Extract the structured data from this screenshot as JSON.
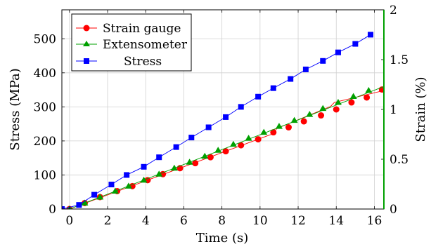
{
  "chart_data": {
    "type": "line",
    "title": "",
    "xlabel": "Time (s)",
    "ylabel_left": "Stress (MPa)",
    "ylabel_right": "Strain (%)",
    "xlim": [
      -0.4,
      16.5
    ],
    "ylim_left": [
      0,
      585
    ],
    "ylim_right": [
      0,
      2
    ],
    "xticks": [
      0,
      2,
      4,
      6,
      8,
      10,
      12,
      14,
      16
    ],
    "yticks_left": [
      0,
      100,
      200,
      300,
      400,
      500
    ],
    "yticks_right": [
      0,
      0.5,
      1,
      1.5,
      2
    ],
    "xtick_labels": [
      "0",
      "2",
      "4",
      "6",
      "8",
      "10",
      "12",
      "14",
      "16"
    ],
    "ytick_labels_left": [
      "0",
      "100",
      "200",
      "300",
      "400",
      "500"
    ],
    "ytick_labels_right": [
      "0",
      "0.5",
      "1",
      "1.5",
      "2"
    ],
    "grid": true,
    "legend_position": "top-left",
    "series": [
      {
        "name": "Strain gauge",
        "axis": "right",
        "color": "#ff0000",
        "marker": "circle",
        "x": [
          0.0,
          0.8,
          1.6,
          2.5,
          3.3,
          4.1,
          4.9,
          5.8,
          6.6,
          7.4,
          8.2,
          9.0,
          9.9,
          10.7,
          11.5,
          12.3,
          13.2,
          14.0,
          14.8,
          15.6,
          16.4
        ],
        "y": [
          0.0,
          0.06,
          0.12,
          0.18,
          0.23,
          0.29,
          0.35,
          0.41,
          0.46,
          0.52,
          0.58,
          0.64,
          0.7,
          0.77,
          0.82,
          0.88,
          0.94,
          1.0,
          1.07,
          1.12,
          1.2
        ],
        "step_x": [
          0.0,
          10.6,
          10.9,
          13.7,
          13.9,
          16.5
        ],
        "step_y": [
          0.0,
          0.75,
          0.81,
          1.03,
          1.07,
          1.19
        ]
      },
      {
        "name": "Extensometer",
        "axis": "right",
        "color": "#00a000",
        "marker": "triangle",
        "x": [
          0.0,
          0.8,
          1.6,
          2.4,
          3.1,
          3.9,
          4.7,
          5.5,
          6.3,
          7.1,
          7.8,
          8.6,
          9.4,
          10.2,
          11.0,
          11.8,
          12.6,
          13.3,
          14.1,
          14.9,
          15.7
        ],
        "y": [
          0.0,
          0.06,
          0.12,
          0.18,
          0.23,
          0.29,
          0.35,
          0.41,
          0.47,
          0.53,
          0.59,
          0.65,
          0.71,
          0.77,
          0.83,
          0.89,
          0.95,
          1.01,
          1.07,
          1.13,
          1.19
        ],
        "step_x": [
          0.0,
          16.5
        ],
        "step_y": [
          0.0,
          1.23
        ]
      },
      {
        "name": "Stress",
        "axis": "left",
        "color": "#0000ff",
        "marker": "square",
        "x": [
          -0.4,
          0.5,
          1.3,
          2.2,
          3.0,
          3.9,
          4.7,
          5.6,
          6.4,
          7.3,
          8.2,
          9.0,
          9.9,
          10.7,
          11.6,
          12.4,
          13.3,
          14.1,
          15.0,
          15.8
        ],
        "y": [
          0,
          12,
          42,
          72,
          100,
          124,
          152,
          182,
          210,
          240,
          270,
          300,
          330,
          355,
          382,
          410,
          435,
          460,
          485,
          512
        ]
      }
    ]
  }
}
